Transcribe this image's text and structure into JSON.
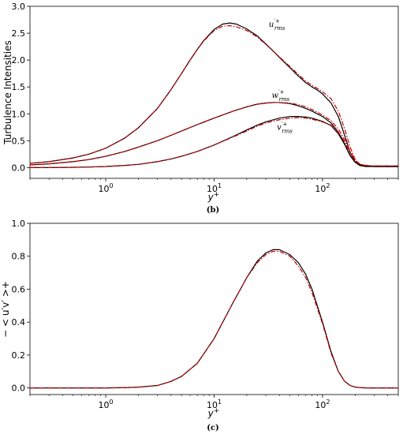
{
  "chart_data": [
    {
      "type": "line",
      "panel_label": "(b)",
      "xlabel": "y+",
      "ylabel": "Turbulence Intensities",
      "xscale": "log",
      "xlim": [
        0.2,
        500
      ],
      "ylim": [
        -0.2,
        3.0
      ],
      "yticks": [
        "0.0",
        "0.5",
        "1.0",
        "1.5",
        "2.0",
        "2.5",
        "3.0"
      ],
      "xticks": [
        {
          "base": "10",
          "exp": "0",
          "value": 1
        },
        {
          "base": "10",
          "exp": "1",
          "value": 10
        },
        {
          "base": "10",
          "exp": "2",
          "value": 100
        }
      ],
      "grid": false,
      "colors": {
        "reference": "#000000",
        "model": "#cc0000"
      },
      "annotations": [
        {
          "base": "u",
          "sup": "′+",
          "sub": "rms",
          "x": 32,
          "y": 2.62
        },
        {
          "base": "w",
          "sup": "′+",
          "sub": "rms",
          "x": 34,
          "y": 1.3
        },
        {
          "base": "v",
          "sup": "′+",
          "sub": "rms",
          "x": 38,
          "y": 0.7
        }
      ],
      "series": [
        {
          "group": "urms",
          "style": "solid",
          "color": "#000000",
          "x": [
            0.2,
            0.3,
            0.5,
            0.7,
            1,
            1.5,
            2,
            3,
            4,
            5,
            6,
            7,
            8,
            10,
            12,
            14,
            16,
            20,
            25,
            30,
            35,
            40,
            50,
            60,
            70,
            80,
            90,
            100,
            120,
            140,
            160,
            180,
            200,
            220,
            250,
            300,
            400,
            500
          ],
          "y": [
            0.08,
            0.11,
            0.18,
            0.25,
            0.36,
            0.55,
            0.74,
            1.1,
            1.45,
            1.75,
            2.0,
            2.2,
            2.36,
            2.57,
            2.67,
            2.69,
            2.67,
            2.58,
            2.45,
            2.3,
            2.17,
            2.05,
            1.86,
            1.7,
            1.58,
            1.5,
            1.44,
            1.37,
            1.2,
            0.95,
            0.6,
            0.28,
            0.1,
            0.04,
            0.02,
            0.02,
            0.02,
            0.02
          ]
        },
        {
          "group": "urms",
          "style": "dashdot",
          "color": "#cc0000",
          "x": [
            0.2,
            0.3,
            0.5,
            0.7,
            1,
            1.5,
            2,
            3,
            4,
            5,
            6,
            7,
            8,
            10,
            12,
            14,
            16,
            20,
            25,
            30,
            35,
            40,
            50,
            60,
            70,
            80,
            90,
            100,
            120,
            140,
            160,
            180,
            200,
            220,
            250,
            300,
            400,
            500
          ],
          "y": [
            0.08,
            0.11,
            0.18,
            0.25,
            0.36,
            0.55,
            0.74,
            1.1,
            1.45,
            1.75,
            2.0,
            2.2,
            2.35,
            2.55,
            2.63,
            2.64,
            2.62,
            2.55,
            2.43,
            2.29,
            2.17,
            2.06,
            1.88,
            1.73,
            1.61,
            1.53,
            1.47,
            1.41,
            1.28,
            1.05,
            0.72,
            0.38,
            0.15,
            0.06,
            0.03,
            0.03,
            0.03,
            0.03
          ]
        },
        {
          "group": "wrms",
          "style": "solid",
          "color": "#000000",
          "x": [
            0.2,
            0.3,
            0.5,
            0.7,
            1,
            1.5,
            2,
            3,
            4,
            5,
            7,
            10,
            15,
            20,
            25,
            30,
            35,
            40,
            50,
            60,
            70,
            80,
            100,
            120,
            140,
            160,
            180,
            200,
            220,
            250,
            300,
            400,
            500
          ],
          "y": [
            0.05,
            0.07,
            0.11,
            0.15,
            0.21,
            0.3,
            0.38,
            0.5,
            0.6,
            0.68,
            0.8,
            0.92,
            1.05,
            1.13,
            1.18,
            1.2,
            1.21,
            1.21,
            1.19,
            1.15,
            1.1,
            1.05,
            0.95,
            0.83,
            0.66,
            0.44,
            0.22,
            0.1,
            0.05,
            0.03,
            0.02,
            0.02,
            0.02
          ]
        },
        {
          "group": "wrms",
          "style": "dashdot",
          "color": "#cc0000",
          "x": [
            0.2,
            0.3,
            0.5,
            0.7,
            1,
            1.5,
            2,
            3,
            4,
            5,
            7,
            10,
            15,
            20,
            25,
            30,
            35,
            40,
            50,
            60,
            70,
            80,
            100,
            120,
            140,
            160,
            180,
            200,
            220,
            250,
            300,
            400,
            500
          ],
          "y": [
            0.05,
            0.07,
            0.11,
            0.15,
            0.21,
            0.3,
            0.38,
            0.5,
            0.6,
            0.68,
            0.8,
            0.92,
            1.05,
            1.13,
            1.18,
            1.2,
            1.21,
            1.21,
            1.2,
            1.17,
            1.13,
            1.08,
            0.98,
            0.87,
            0.72,
            0.52,
            0.3,
            0.14,
            0.07,
            0.04,
            0.03,
            0.03,
            0.03
          ]
        },
        {
          "group": "vrms",
          "style": "solid",
          "color": "#000000",
          "x": [
            0.2,
            0.3,
            0.5,
            0.7,
            1,
            1.5,
            2,
            3,
            4,
            5,
            7,
            10,
            15,
            20,
            25,
            30,
            40,
            50,
            60,
            70,
            80,
            100,
            120,
            140,
            160,
            180,
            200,
            220,
            250,
            300,
            400,
            500
          ],
          "y": [
            0.0,
            0.0,
            0.005,
            0.01,
            0.02,
            0.04,
            0.06,
            0.11,
            0.16,
            0.21,
            0.3,
            0.42,
            0.58,
            0.7,
            0.79,
            0.85,
            0.92,
            0.95,
            0.95,
            0.94,
            0.92,
            0.86,
            0.78,
            0.63,
            0.43,
            0.22,
            0.1,
            0.05,
            0.03,
            0.02,
            0.02,
            0.02
          ]
        },
        {
          "group": "vrms",
          "style": "dashdot",
          "color": "#cc0000",
          "x": [
            0.2,
            0.3,
            0.5,
            0.7,
            1,
            1.5,
            2,
            3,
            4,
            5,
            7,
            10,
            15,
            20,
            25,
            30,
            40,
            50,
            60,
            70,
            80,
            100,
            120,
            140,
            160,
            180,
            200,
            220,
            250,
            300,
            400,
            500
          ],
          "y": [
            0.0,
            0.0,
            0.005,
            0.01,
            0.02,
            0.04,
            0.06,
            0.11,
            0.16,
            0.21,
            0.3,
            0.42,
            0.57,
            0.68,
            0.77,
            0.83,
            0.89,
            0.92,
            0.93,
            0.92,
            0.9,
            0.85,
            0.79,
            0.66,
            0.48,
            0.27,
            0.13,
            0.06,
            0.04,
            0.03,
            0.03,
            0.03
          ]
        }
      ]
    },
    {
      "type": "line",
      "panel_label": "(c)",
      "xlabel": "y+",
      "ylabel": "− < u′v′ >+",
      "xscale": "log",
      "xlim": [
        0.2,
        500
      ],
      "ylim": [
        -0.04,
        1.0
      ],
      "yticks": [
        "0.0",
        "0.2",
        "0.4",
        "0.6",
        "0.8",
        "1.0"
      ],
      "xticks": [
        {
          "base": "10",
          "exp": "0",
          "value": 1
        },
        {
          "base": "10",
          "exp": "1",
          "value": 10
        },
        {
          "base": "10",
          "exp": "2",
          "value": 100
        }
      ],
      "grid": false,
      "colors": {
        "reference": "#000000",
        "model": "#cc0000"
      },
      "series": [
        {
          "group": "uv",
          "style": "solid",
          "color": "#000000",
          "x": [
            0.2,
            0.5,
            1,
            1.5,
            2,
            3,
            4,
            5,
            7,
            10,
            15,
            20,
            25,
            30,
            35,
            40,
            50,
            60,
            70,
            80,
            100,
            120,
            140,
            160,
            180,
            200,
            250,
            300,
            500
          ],
          "y": [
            0.0,
            0.0,
            0.0,
            0.002,
            0.005,
            0.015,
            0.04,
            0.07,
            0.15,
            0.3,
            0.52,
            0.67,
            0.77,
            0.82,
            0.84,
            0.84,
            0.81,
            0.76,
            0.69,
            0.6,
            0.4,
            0.22,
            0.1,
            0.04,
            0.015,
            0.005,
            0.0,
            0.0,
            0.0
          ]
        },
        {
          "group": "uv",
          "style": "dashdot",
          "color": "#cc0000",
          "x": [
            0.2,
            0.5,
            1,
            1.5,
            2,
            3,
            4,
            5,
            7,
            10,
            15,
            20,
            25,
            30,
            35,
            40,
            50,
            60,
            70,
            80,
            100,
            120,
            140,
            160,
            180,
            200,
            250,
            300,
            500
          ],
          "y": [
            0.0,
            0.0,
            0.0,
            0.002,
            0.005,
            0.015,
            0.04,
            0.07,
            0.15,
            0.3,
            0.52,
            0.67,
            0.76,
            0.81,
            0.83,
            0.83,
            0.8,
            0.74,
            0.67,
            0.58,
            0.39,
            0.21,
            0.1,
            0.04,
            0.015,
            0.005,
            0.0,
            0.0,
            0.0
          ]
        }
      ]
    }
  ]
}
